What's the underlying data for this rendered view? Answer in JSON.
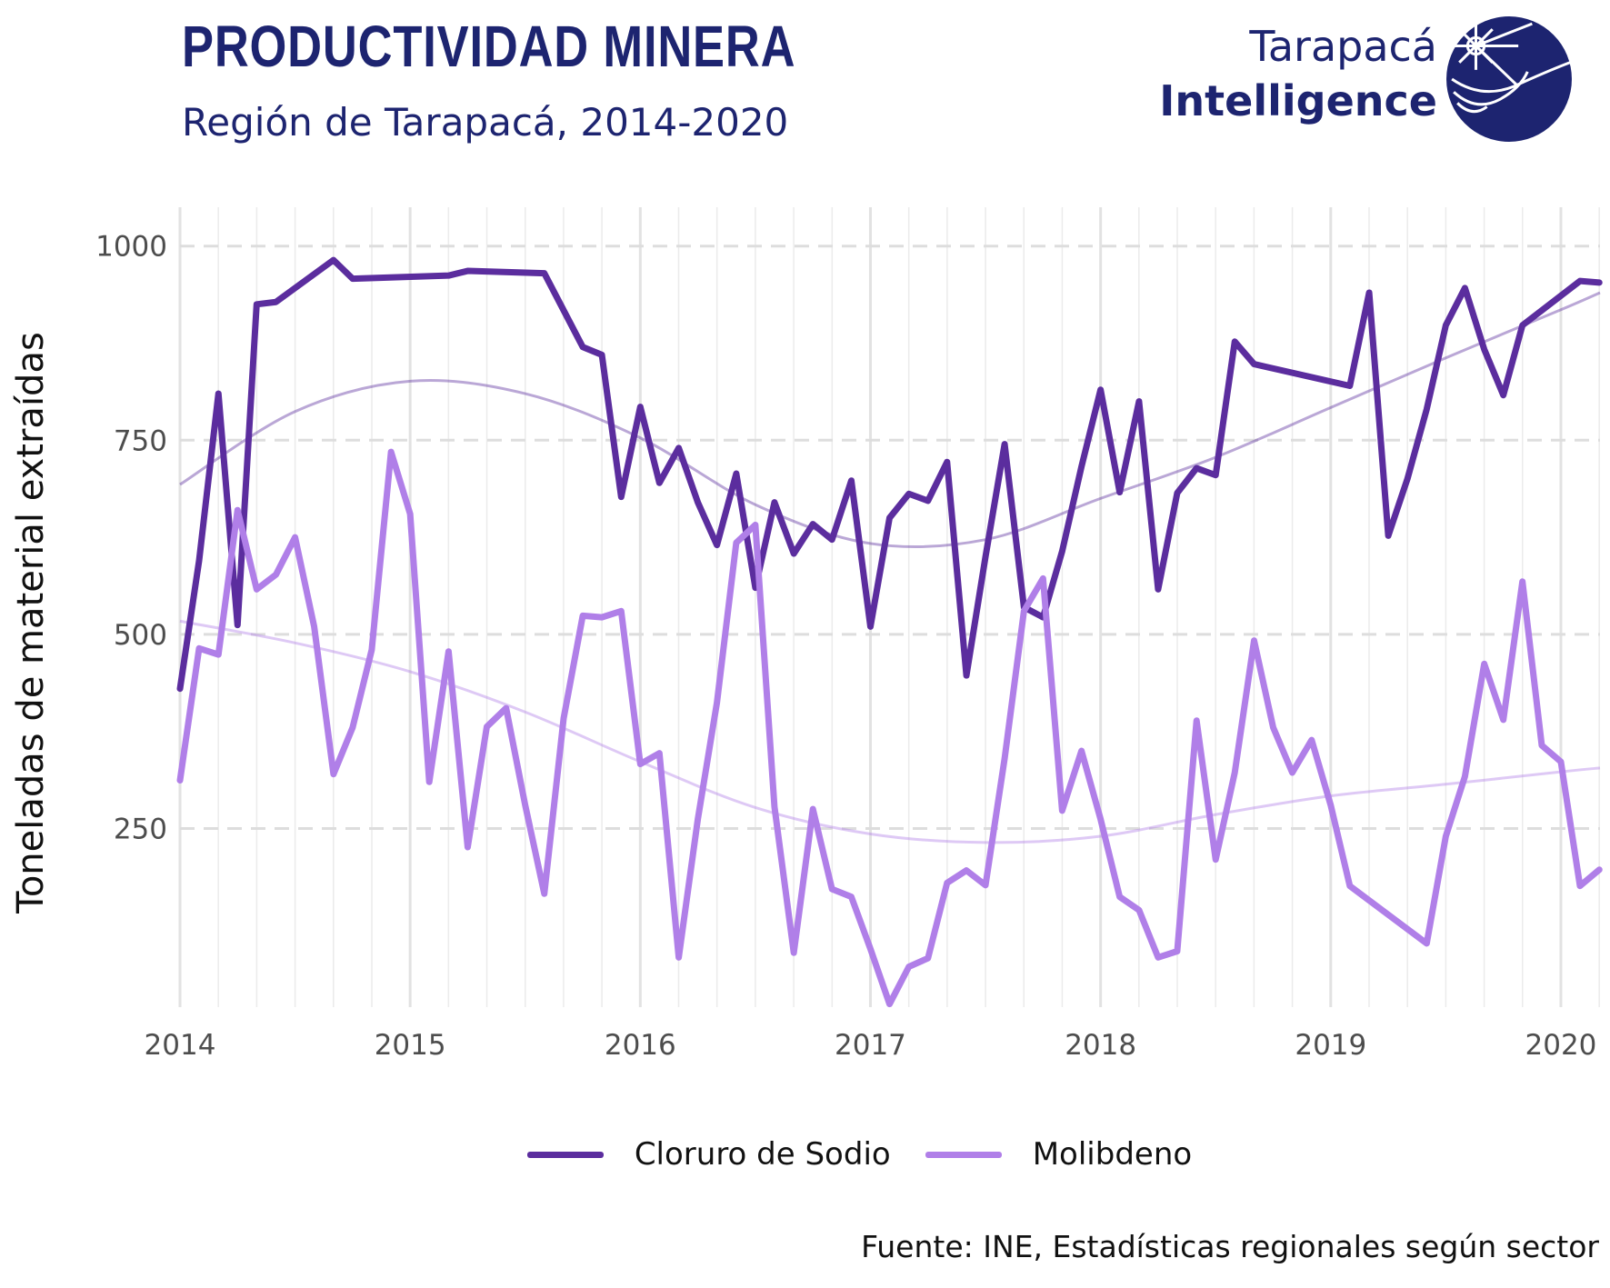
{
  "header": {
    "title": "PRODUCTIVIDAD MINERA",
    "subtitle": "Región de Tarapacá, 2014-2020"
  },
  "logo": {
    "line1": "Tarapacá",
    "line2": "Intelligence",
    "color": "#1d2470"
  },
  "footer": {
    "source": "Fuente: INE, Estadísticas regionales según sector"
  },
  "chart_data": {
    "type": "line",
    "title": "PRODUCTIVIDAD MINERA",
    "subtitle": "Región de Tarapacá, 2014-2020",
    "xlabel": "",
    "ylabel": "Toneladas de material extraídas",
    "xlim": [
      2014.0,
      2020.17
    ],
    "ylim": [
      20,
      1050
    ],
    "yticks": [
      250,
      500,
      750,
      1000
    ],
    "xticks": [
      2014,
      2015,
      2016,
      2017,
      2018,
      2019,
      2020
    ],
    "xtick_labels": [
      "2014",
      "2015",
      "2016",
      "2017",
      "2018",
      "2019",
      "2020"
    ],
    "grid": true,
    "legend_position": "bottom",
    "series": [
      {
        "name": "Cloruro de Sodio",
        "color": "#5b2d9e",
        "points": [
          [
            2014.0,
            430
          ],
          [
            2014.083,
            595
          ],
          [
            2014.167,
            810
          ],
          [
            2014.25,
            512
          ],
          [
            2014.333,
            925
          ],
          [
            2014.417,
            928
          ],
          [
            2014.667,
            982
          ],
          [
            2014.75,
            958
          ],
          [
            2015.167,
            962
          ],
          [
            2015.25,
            968
          ],
          [
            2015.583,
            965
          ],
          [
            2015.75,
            870
          ],
          [
            2015.833,
            860
          ],
          [
            2015.917,
            677
          ],
          [
            2016.0,
            793
          ],
          [
            2016.083,
            695
          ],
          [
            2016.167,
            740
          ],
          [
            2016.25,
            670
          ],
          [
            2016.333,
            615
          ],
          [
            2016.417,
            707
          ],
          [
            2016.5,
            560
          ],
          [
            2016.583,
            670
          ],
          [
            2016.667,
            604
          ],
          [
            2016.75,
            642
          ],
          [
            2016.833,
            622
          ],
          [
            2016.917,
            698
          ],
          [
            2017.0,
            510
          ],
          [
            2017.083,
            650
          ],
          [
            2017.167,
            681
          ],
          [
            2017.25,
            672
          ],
          [
            2017.333,
            722
          ],
          [
            2017.417,
            447
          ],
          [
            2017.5,
            600
          ],
          [
            2017.583,
            745
          ],
          [
            2017.667,
            535
          ],
          [
            2017.75,
            522
          ],
          [
            2017.833,
            607
          ],
          [
            2017.917,
            716
          ],
          [
            2018.0,
            815
          ],
          [
            2018.083,
            683
          ],
          [
            2018.167,
            800
          ],
          [
            2018.25,
            558
          ],
          [
            2018.333,
            682
          ],
          [
            2018.417,
            714
          ],
          [
            2018.5,
            705
          ],
          [
            2018.583,
            877
          ],
          [
            2018.667,
            848
          ],
          [
            2019.083,
            820
          ],
          [
            2019.167,
            940
          ],
          [
            2019.25,
            627
          ],
          [
            2019.333,
            700
          ],
          [
            2019.417,
            790
          ],
          [
            2019.5,
            898
          ],
          [
            2019.583,
            946
          ],
          [
            2019.667,
            867
          ],
          [
            2019.75,
            808
          ],
          [
            2019.833,
            898
          ],
          [
            2020.083,
            955
          ],
          [
            2020.167,
            953
          ]
        ],
        "trend": [
          [
            2014.0,
            693
          ],
          [
            2014.5,
            787
          ],
          [
            2015.0,
            826
          ],
          [
            2015.5,
            810
          ],
          [
            2016.0,
            753
          ],
          [
            2016.5,
            667
          ],
          [
            2017.0,
            617
          ],
          [
            2017.5,
            622
          ],
          [
            2018.0,
            675
          ],
          [
            2018.5,
            728
          ],
          [
            2019.0,
            792
          ],
          [
            2019.5,
            856
          ],
          [
            2020.0,
            918
          ],
          [
            2020.17,
            940
          ]
        ]
      },
      {
        "name": "Molibdeno",
        "color": "#b07fe8",
        "points": [
          [
            2014.0,
            312
          ],
          [
            2014.083,
            482
          ],
          [
            2014.167,
            474
          ],
          [
            2014.25,
            660
          ],
          [
            2014.333,
            558
          ],
          [
            2014.417,
            577
          ],
          [
            2014.5,
            625
          ],
          [
            2014.583,
            510
          ],
          [
            2014.667,
            320
          ],
          [
            2014.75,
            380
          ],
          [
            2014.833,
            480
          ],
          [
            2014.917,
            735
          ],
          [
            2015.0,
            655
          ],
          [
            2015.083,
            310
          ],
          [
            2015.167,
            478
          ],
          [
            2015.25,
            226
          ],
          [
            2015.333,
            381
          ],
          [
            2015.417,
            405
          ],
          [
            2015.5,
            280
          ],
          [
            2015.583,
            166
          ],
          [
            2015.667,
            392
          ],
          [
            2015.75,
            524
          ],
          [
            2015.833,
            522
          ],
          [
            2015.917,
            530
          ],
          [
            2016.0,
            333
          ],
          [
            2016.083,
            347
          ],
          [
            2016.167,
            84
          ],
          [
            2016.25,
            262
          ],
          [
            2016.333,
            412
          ],
          [
            2016.417,
            618
          ],
          [
            2016.5,
            641
          ],
          [
            2016.583,
            278
          ],
          [
            2016.667,
            90
          ],
          [
            2016.75,
            275
          ],
          [
            2016.833,
            172
          ],
          [
            2016.917,
            162
          ],
          [
            2017.0,
            95
          ],
          [
            2017.083,
            24
          ],
          [
            2017.167,
            72
          ],
          [
            2017.25,
            83
          ],
          [
            2017.333,
            180
          ],
          [
            2017.417,
            196
          ],
          [
            2017.5,
            177
          ],
          [
            2017.583,
            340
          ],
          [
            2017.667,
            530
          ],
          [
            2017.75,
            572
          ],
          [
            2017.833,
            273
          ],
          [
            2017.917,
            350
          ],
          [
            2018.0,
            262
          ],
          [
            2018.083,
            162
          ],
          [
            2018.167,
            145
          ],
          [
            2018.25,
            84
          ],
          [
            2018.333,
            92
          ],
          [
            2018.417,
            389
          ],
          [
            2018.5,
            210
          ],
          [
            2018.583,
            322
          ],
          [
            2018.667,
            492
          ],
          [
            2018.75,
            380
          ],
          [
            2018.833,
            322
          ],
          [
            2018.917,
            364
          ],
          [
            2019.0,
            280
          ],
          [
            2019.083,
            176
          ],
          [
            2019.417,
            102
          ],
          [
            2019.5,
            240
          ],
          [
            2019.583,
            317
          ],
          [
            2019.667,
            462
          ],
          [
            2019.75,
            390
          ],
          [
            2019.833,
            568
          ],
          [
            2019.917,
            357
          ],
          [
            2020.0,
            336
          ],
          [
            2020.083,
            176
          ],
          [
            2020.167,
            197
          ]
        ],
        "trend": [
          [
            2014.0,
            517
          ],
          [
            2014.5,
            489
          ],
          [
            2015.0,
            452
          ],
          [
            2015.5,
            400
          ],
          [
            2016.0,
            336
          ],
          [
            2016.5,
            277
          ],
          [
            2017.0,
            243
          ],
          [
            2017.5,
            232
          ],
          [
            2018.0,
            240
          ],
          [
            2018.5,
            268
          ],
          [
            2019.0,
            292
          ],
          [
            2019.5,
            307
          ],
          [
            2020.0,
            323
          ],
          [
            2020.17,
            328
          ]
        ]
      }
    ]
  }
}
